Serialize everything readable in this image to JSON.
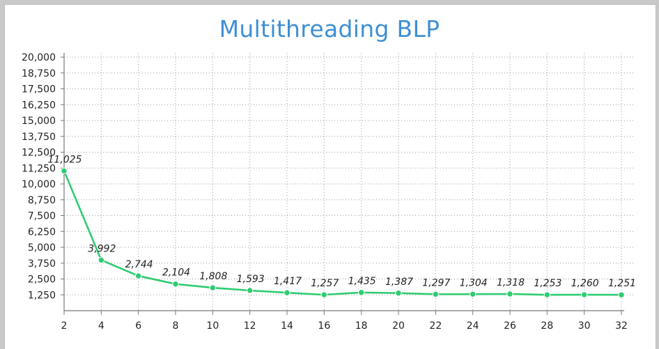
{
  "chart_data": {
    "type": "line",
    "title": "Multithreading BLP",
    "xlabel": "",
    "ylabel": "",
    "x": [
      2,
      4,
      6,
      8,
      10,
      12,
      14,
      16,
      18,
      20,
      22,
      24,
      26,
      28,
      30,
      32
    ],
    "series": [
      {
        "values": [
          11025,
          3992,
          2744,
          2104,
          1808,
          1593,
          1417,
          1257,
          1435,
          1387,
          1297,
          1304,
          1318,
          1253,
          1260,
          1251
        ],
        "data_labels": [
          "11,025",
          "3,992",
          "2,744",
          "2,104",
          "1,808",
          "1,593",
          "1,417",
          "1,257",
          "1,435",
          "1,387",
          "1,297",
          "1,304",
          "1,318",
          "1,253",
          "1,260",
          "1,251"
        ]
      }
    ],
    "xticks": [
      "2",
      "4",
      "6",
      "8",
      "10",
      "12",
      "14",
      "16",
      "18",
      "20",
      "22",
      "24",
      "26",
      "28",
      "30",
      "32"
    ],
    "yticks": [
      1250,
      2500,
      3750,
      5000,
      6250,
      7500,
      8750,
      10000,
      11250,
      12500,
      13750,
      15000,
      16250,
      17500,
      18750,
      20000
    ],
    "ytick_labels": [
      "1,250",
      "2,500",
      "3,750",
      "5,000",
      "6,250",
      "7,500",
      "8,750",
      "10,000",
      "11,250",
      "12,500",
      "13,750",
      "15,000",
      "16,250",
      "17,500",
      "18,750",
      "20,000"
    ],
    "xlim": [
      2,
      32
    ],
    "ylim": [
      0,
      20000
    ],
    "grid": true,
    "line_color": "#2ecc71",
    "title_color": "#3f8fd2"
  }
}
